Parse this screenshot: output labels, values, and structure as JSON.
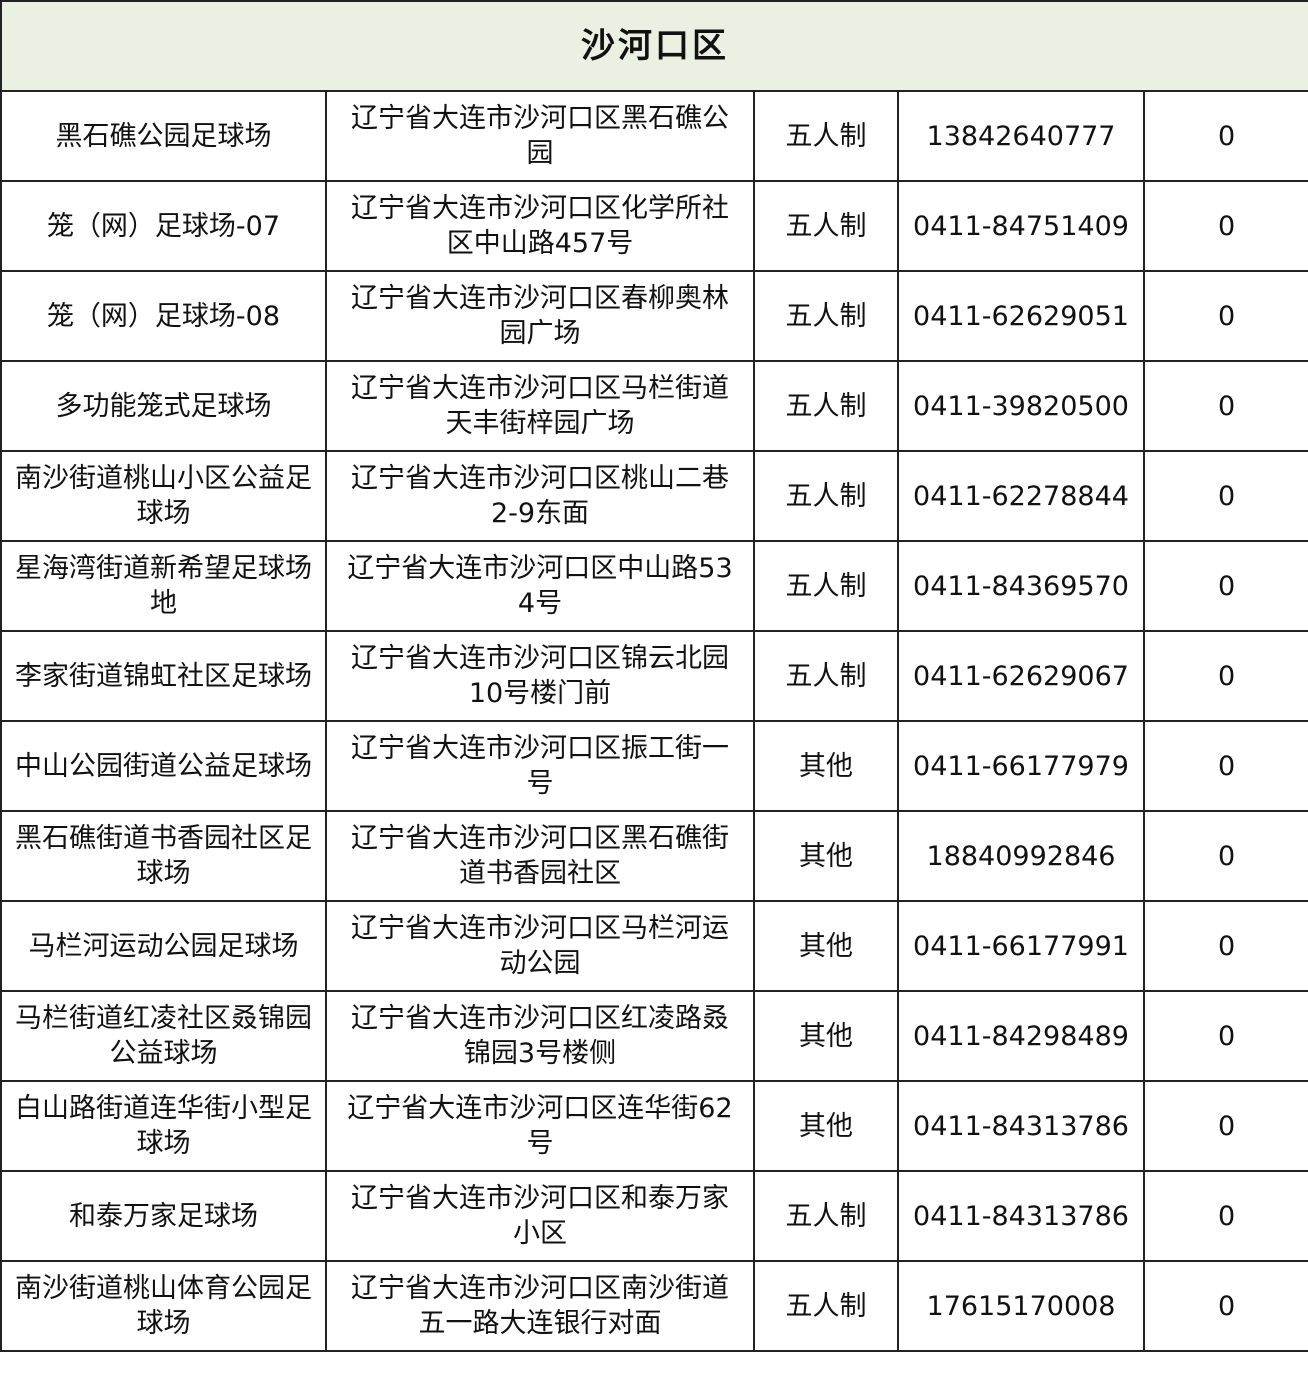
{
  "title": "沙河口区",
  "colors": {
    "header_bg": "#ebf1e2",
    "border": "#222222"
  },
  "rows": [
    {
      "name": "黑石礁公园足球场",
      "address": "辽宁省大连市沙河口区黑石礁公园",
      "type": "五人制",
      "phone": "13842640777",
      "count": "0"
    },
    {
      "name": "笼（网）足球场-07",
      "address": "辽宁省大连市沙河口区化学所社区中山路457号",
      "type": "五人制",
      "phone": "0411-84751409",
      "count": "0"
    },
    {
      "name": "笼（网）足球场-08",
      "address": "辽宁省大连市沙河口区春柳奥林园广场",
      "type": "五人制",
      "phone": "0411-62629051",
      "count": "0"
    },
    {
      "name": "多功能笼式足球场",
      "address": "辽宁省大连市沙河口区马栏街道天丰街梓园广场",
      "type": "五人制",
      "phone": "0411-39820500",
      "count": "0"
    },
    {
      "name": "南沙街道桃山小区公益足球场",
      "address": "辽宁省大连市沙河口区桃山二巷2-9东面",
      "type": "五人制",
      "phone": "0411-62278844",
      "count": "0"
    },
    {
      "name": "星海湾街道新希望足球场地",
      "address": "辽宁省大连市沙河口区中山路534号",
      "type": "五人制",
      "phone": "0411-84369570",
      "count": "0"
    },
    {
      "name": "李家街道锦虹社区足球场",
      "address": "辽宁省大连市沙河口区锦云北园10号楼门前",
      "type": "五人制",
      "phone": "0411-62629067",
      "count": "0"
    },
    {
      "name": "中山公园街道公益足球场",
      "address": "辽宁省大连市沙河口区振工街一号",
      "type": "其他",
      "phone": "0411-66177979",
      "count": "0"
    },
    {
      "name": "黑石礁街道书香园社区足球场",
      "address": "辽宁省大连市沙河口区黑石礁街道书香园社区",
      "type": "其他",
      "phone": "18840992846",
      "count": "0"
    },
    {
      "name": "马栏河运动公园足球场",
      "address": "辽宁省大连市沙河口区马栏河运动公园",
      "type": "其他",
      "phone": "0411-66177991",
      "count": "0"
    },
    {
      "name": "马栏街道红凌社区叒锦园公益球场",
      "address": "辽宁省大连市沙河口区红凌路叒锦园3号楼侧",
      "type": "其他",
      "phone": "0411-84298489",
      "count": "0"
    },
    {
      "name": "白山路街道连华街小型足球场",
      "address": "辽宁省大连市沙河口区连华街62号",
      "type": "其他",
      "phone": "0411-84313786",
      "count": "0"
    },
    {
      "name": "和泰万家足球场",
      "address": "辽宁省大连市沙河口区和泰万家小区",
      "type": "五人制",
      "phone": "0411-84313786",
      "count": "0"
    },
    {
      "name": "南沙街道桃山体育公园足球场",
      "address": "辽宁省大连市沙河口区南沙街道五一路大连银行对面",
      "type": "五人制",
      "phone": "17615170008",
      "count": "0"
    }
  ]
}
